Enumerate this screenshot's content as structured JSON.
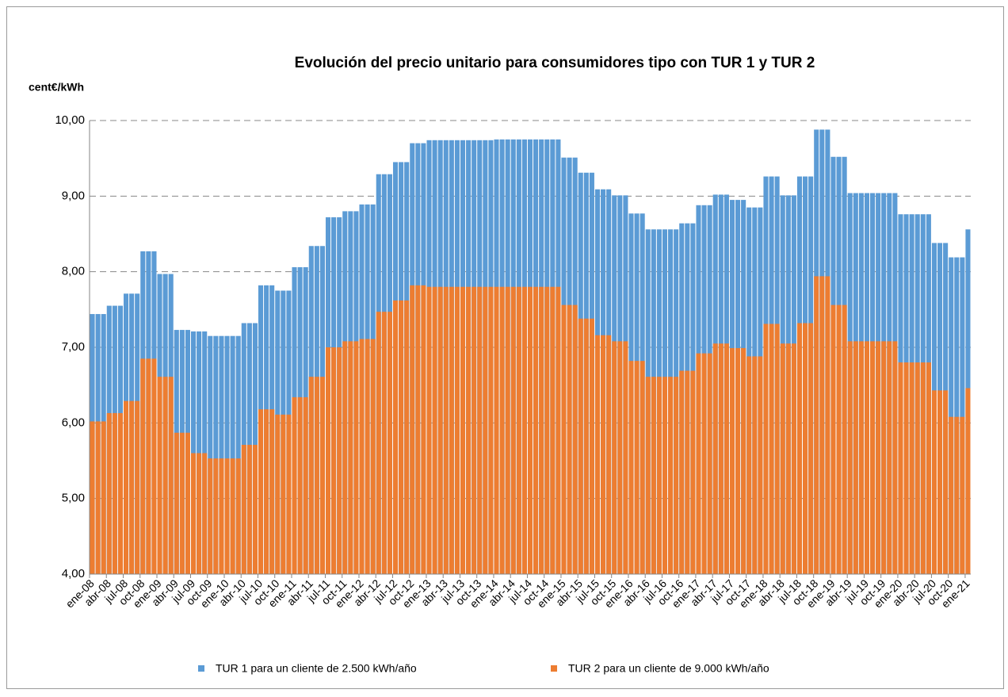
{
  "chart_data": {
    "type": "bar",
    "overlap": true,
    "title": "Evolución del precio unitario para consumidores tipo con TUR 1 y TUR 2",
    "y_label": "cent€/kWh",
    "categories": [
      "ene-08",
      null,
      null,
      "abr-08",
      null,
      null,
      "jul-08",
      null,
      null,
      "oct-08",
      null,
      null,
      "ene-09",
      null,
      null,
      "abr-09",
      null,
      null,
      "jul-09",
      null,
      null,
      "oct-09",
      null,
      null,
      "ene-10",
      null,
      null,
      "abr-10",
      null,
      null,
      "jul-10",
      null,
      null,
      "oct-10",
      null,
      null,
      "ene-11",
      null,
      null,
      "abr-11",
      null,
      null,
      "jul-11",
      null,
      null,
      "oct-11",
      null,
      null,
      "ene-12",
      null,
      null,
      "abr-12",
      null,
      null,
      "jul-12",
      null,
      null,
      "oct-12",
      null,
      null,
      "ene-13",
      null,
      null,
      "abr-13",
      null,
      null,
      "jul-13",
      null,
      null,
      "oct-13",
      null,
      null,
      "ene-14",
      null,
      null,
      "abr-14",
      null,
      null,
      "jul-14",
      null,
      null,
      "oct-14",
      null,
      null,
      "ene-15",
      null,
      null,
      "abr-15",
      null,
      null,
      "jul-15",
      null,
      null,
      "oct-15",
      null,
      null,
      "ene-16",
      null,
      null,
      "abr-16",
      null,
      null,
      "jul-16",
      null,
      null,
      "oct-16",
      null,
      null,
      "ene-17",
      null,
      null,
      "abr-17",
      null,
      null,
      "jul-17",
      null,
      null,
      "oct-17",
      null,
      null,
      "ene-18",
      null,
      null,
      "abr-18",
      null,
      null,
      "jul-18",
      null,
      null,
      "oct-18",
      null,
      null,
      "ene-19",
      null,
      null,
      "abr-19",
      null,
      null,
      "jul-19",
      null,
      null,
      "oct-19",
      null,
      null,
      "ene-20",
      null,
      null,
      "abr-20",
      null,
      null,
      "jul-20",
      null,
      null,
      "oct-20",
      null,
      null,
      "ene-21"
    ],
    "series": [
      {
        "name": "TUR 1 para un cliente de 2.500 kWh/año",
        "color": "#5b9bd5",
        "values": [
          7.44,
          7.44,
          7.44,
          7.55,
          7.55,
          7.55,
          7.71,
          7.71,
          7.71,
          8.27,
          8.27,
          8.27,
          7.97,
          7.97,
          7.97,
          7.23,
          7.23,
          7.23,
          7.21,
          7.21,
          7.21,
          7.15,
          7.15,
          7.15,
          7.15,
          7.15,
          7.15,
          7.32,
          7.32,
          7.32,
          7.82,
          7.82,
          7.82,
          7.75,
          7.75,
          7.75,
          8.06,
          8.06,
          8.06,
          8.34,
          8.34,
          8.34,
          8.72,
          8.72,
          8.72,
          8.8,
          8.8,
          8.8,
          8.89,
          8.89,
          8.89,
          9.29,
          9.29,
          9.29,
          9.45,
          9.45,
          9.45,
          9.7,
          9.7,
          9.7,
          9.74,
          9.74,
          9.74,
          9.74,
          9.74,
          9.74,
          9.74,
          9.74,
          9.74,
          9.74,
          9.74,
          9.74,
          9.75,
          9.75,
          9.75,
          9.75,
          9.75,
          9.75,
          9.75,
          9.75,
          9.75,
          9.75,
          9.75,
          9.75,
          9.51,
          9.51,
          9.51,
          9.31,
          9.31,
          9.31,
          9.09,
          9.09,
          9.09,
          9.01,
          9.01,
          9.01,
          8.77,
          8.77,
          8.77,
          8.56,
          8.56,
          8.56,
          8.56,
          8.56,
          8.56,
          8.64,
          8.64,
          8.64,
          8.88,
          8.88,
          8.88,
          9.02,
          9.02,
          9.02,
          8.95,
          8.95,
          8.95,
          8.85,
          8.85,
          8.85,
          9.26,
          9.26,
          9.26,
          9.01,
          9.01,
          9.01,
          9.26,
          9.26,
          9.26,
          9.88,
          9.88,
          9.88,
          9.52,
          9.52,
          9.52,
          9.04,
          9.04,
          9.04,
          9.04,
          9.04,
          9.04,
          9.04,
          9.04,
          9.04,
          8.76,
          8.76,
          8.76,
          8.76,
          8.76,
          8.76,
          8.38,
          8.38,
          8.38,
          8.19,
          8.19,
          8.19,
          8.56
        ]
      },
      {
        "name": "TUR 2 para un cliente de 9.000 kWh/año",
        "color": "#ed7d31",
        "values": [
          6.02,
          6.02,
          6.02,
          6.13,
          6.13,
          6.13,
          6.29,
          6.29,
          6.29,
          6.85,
          6.85,
          6.85,
          6.61,
          6.61,
          6.61,
          5.87,
          5.87,
          5.87,
          5.6,
          5.6,
          5.6,
          5.53,
          5.53,
          5.53,
          5.53,
          5.53,
          5.53,
          5.71,
          5.71,
          5.71,
          6.18,
          6.18,
          6.18,
          6.11,
          6.11,
          6.11,
          6.34,
          6.34,
          6.34,
          6.61,
          6.61,
          6.61,
          7,
          7,
          7,
          7.08,
          7.08,
          7.08,
          7.11,
          7.11,
          7.11,
          7.47,
          7.47,
          7.47,
          7.62,
          7.62,
          7.62,
          7.82,
          7.82,
          7.82,
          7.8,
          7.8,
          7.8,
          7.8,
          7.8,
          7.8,
          7.8,
          7.8,
          7.8,
          7.8,
          7.8,
          7.8,
          7.8,
          7.8,
          7.8,
          7.8,
          7.8,
          7.8,
          7.8,
          7.8,
          7.8,
          7.8,
          7.8,
          7.8,
          7.56,
          7.56,
          7.56,
          7.38,
          7.38,
          7.38,
          7.16,
          7.16,
          7.16,
          7.08,
          7.08,
          7.08,
          6.82,
          6.82,
          6.82,
          6.61,
          6.61,
          6.61,
          6.61,
          6.61,
          6.61,
          6.69,
          6.69,
          6.69,
          6.92,
          6.92,
          6.92,
          7.05,
          7.05,
          7.05,
          6.99,
          6.99,
          6.99,
          6.88,
          6.88,
          6.88,
          7.31,
          7.31,
          7.31,
          7.05,
          7.05,
          7.05,
          7.32,
          7.32,
          7.32,
          7.94,
          7.94,
          7.94,
          7.56,
          7.56,
          7.56,
          7.08,
          7.08,
          7.08,
          7.08,
          7.08,
          7.08,
          7.08,
          7.08,
          7.08,
          6.8,
          6.8,
          6.8,
          6.8,
          6.8,
          6.8,
          6.43,
          6.43,
          6.43,
          6.08,
          6.08,
          6.08,
          6.46
        ]
      }
    ],
    "ylim": [
      4,
      10
    ],
    "yticks": [
      {
        "value": 4,
        "label": "4,00"
      },
      {
        "value": 5,
        "label": "5,00"
      },
      {
        "value": 6,
        "label": "6,00"
      },
      {
        "value": 7,
        "label": "7,00"
      },
      {
        "value": 8,
        "label": "8,00"
      },
      {
        "value": 9,
        "label": "9,00"
      },
      {
        "value": 10,
        "label": "10,00"
      }
    ],
    "grid": true,
    "legend": "bottom"
  }
}
